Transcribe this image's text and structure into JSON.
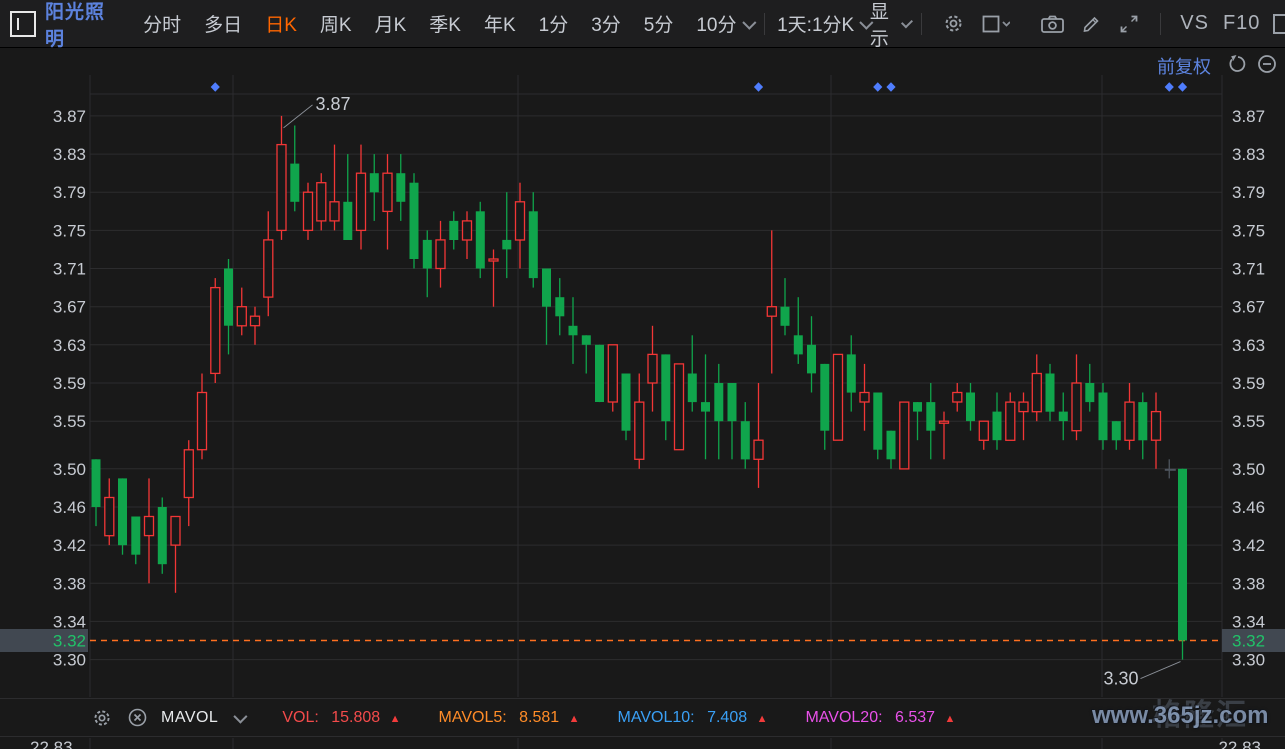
{
  "header": {
    "stock_name": "阳光照明",
    "tabs": [
      {
        "label": "分时",
        "active": false
      },
      {
        "label": "多日",
        "active": false
      },
      {
        "label": "日K",
        "active": true
      },
      {
        "label": "周K",
        "active": false
      },
      {
        "label": "月K",
        "active": false
      },
      {
        "label": "季K",
        "active": false
      },
      {
        "label": "年K",
        "active": false
      },
      {
        "label": "1分",
        "active": false
      },
      {
        "label": "3分",
        "active": false
      },
      {
        "label": "5分",
        "active": false
      },
      {
        "label": "10分",
        "active": false
      }
    ],
    "period_selector": "1天:1分K",
    "display_label": "显示",
    "vs_label": "VS",
    "f10_label": "F10"
  },
  "chart": {
    "adjust_label": "前复权",
    "current_price": "3.32"
  },
  "chart_data": {
    "type": "candlestick",
    "title": "阳光照明 日K 前复权",
    "ylim": [
      3.287,
      3.893
    ],
    "y_ticks": [
      3.87,
      3.83,
      3.79,
      3.75,
      3.71,
      3.67,
      3.63,
      3.59,
      3.55,
      3.5,
      3.46,
      3.42,
      3.38,
      3.34,
      3.3
    ],
    "current_price": 3.32,
    "annotations": {
      "high": {
        "label": "3.87",
        "index": 14
      },
      "low": {
        "label": "3.30",
        "index": 82
      }
    },
    "event_marker_indices": [
      9,
      50,
      59,
      60,
      81,
      82
    ],
    "gray_indices": [
      81
    ],
    "candles": [
      [
        3.51,
        3.51,
        3.44,
        3.46
      ],
      [
        3.43,
        3.49,
        3.42,
        3.47
      ],
      [
        3.49,
        3.49,
        3.41,
        3.42
      ],
      [
        3.45,
        3.45,
        3.4,
        3.41
      ],
      [
        3.43,
        3.49,
        3.38,
        3.45
      ],
      [
        3.46,
        3.47,
        3.39,
        3.4
      ],
      [
        3.42,
        3.45,
        3.37,
        3.45
      ],
      [
        3.47,
        3.53,
        3.44,
        3.52
      ],
      [
        3.52,
        3.6,
        3.51,
        3.58
      ],
      [
        3.6,
        3.7,
        3.59,
        3.69
      ],
      [
        3.71,
        3.72,
        3.62,
        3.65
      ],
      [
        3.65,
        3.69,
        3.64,
        3.67
      ],
      [
        3.65,
        3.67,
        3.63,
        3.66
      ],
      [
        3.68,
        3.77,
        3.66,
        3.74
      ],
      [
        3.75,
        3.87,
        3.74,
        3.84
      ],
      [
        3.82,
        3.86,
        3.77,
        3.78
      ],
      [
        3.75,
        3.8,
        3.74,
        3.79
      ],
      [
        3.76,
        3.81,
        3.75,
        3.8
      ],
      [
        3.76,
        3.84,
        3.75,
        3.78
      ],
      [
        3.78,
        3.83,
        3.74,
        3.74
      ],
      [
        3.75,
        3.84,
        3.73,
        3.81
      ],
      [
        3.81,
        3.83,
        3.76,
        3.79
      ],
      [
        3.77,
        3.83,
        3.73,
        3.81
      ],
      [
        3.81,
        3.83,
        3.76,
        3.78
      ],
      [
        3.8,
        3.81,
        3.71,
        3.72
      ],
      [
        3.74,
        3.75,
        3.68,
        3.71
      ],
      [
        3.71,
        3.76,
        3.69,
        3.74
      ],
      [
        3.76,
        3.77,
        3.73,
        3.74
      ],
      [
        3.74,
        3.77,
        3.72,
        3.76
      ],
      [
        3.77,
        3.78,
        3.7,
        3.71
      ],
      [
        3.72,
        3.73,
        3.67,
        3.72
      ],
      [
        3.74,
        3.79,
        3.7,
        3.73
      ],
      [
        3.74,
        3.8,
        3.71,
        3.78
      ],
      [
        3.77,
        3.79,
        3.69,
        3.7
      ],
      [
        3.71,
        3.71,
        3.63,
        3.67
      ],
      [
        3.68,
        3.7,
        3.64,
        3.66
      ],
      [
        3.65,
        3.68,
        3.61,
        3.64
      ],
      [
        3.64,
        3.64,
        3.6,
        3.63
      ],
      [
        3.63,
        3.63,
        3.57,
        3.57
      ],
      [
        3.57,
        3.63,
        3.56,
        3.63
      ],
      [
        3.6,
        3.6,
        3.53,
        3.54
      ],
      [
        3.51,
        3.6,
        3.5,
        3.57
      ],
      [
        3.59,
        3.65,
        3.56,
        3.62
      ],
      [
        3.62,
        3.62,
        3.53,
        3.55
      ],
      [
        3.52,
        3.61,
        3.52,
        3.61
      ],
      [
        3.6,
        3.64,
        3.56,
        3.57
      ],
      [
        3.57,
        3.62,
        3.51,
        3.56
      ],
      [
        3.59,
        3.61,
        3.51,
        3.55
      ],
      [
        3.59,
        3.59,
        3.51,
        3.55
      ],
      [
        3.55,
        3.57,
        3.5,
        3.51
      ],
      [
        3.51,
        3.59,
        3.48,
        3.53
      ],
      [
        3.66,
        3.75,
        3.6,
        3.67
      ],
      [
        3.67,
        3.7,
        3.64,
        3.65
      ],
      [
        3.64,
        3.68,
        3.61,
        3.62
      ],
      [
        3.63,
        3.66,
        3.58,
        3.6
      ],
      [
        3.61,
        3.61,
        3.52,
        3.54
      ],
      [
        3.53,
        3.62,
        3.53,
        3.62
      ],
      [
        3.62,
        3.64,
        3.56,
        3.58
      ],
      [
        3.57,
        3.61,
        3.54,
        3.58
      ],
      [
        3.58,
        3.58,
        3.51,
        3.52
      ],
      [
        3.54,
        3.54,
        3.5,
        3.51
      ],
      [
        3.5,
        3.57,
        3.5,
        3.57
      ],
      [
        3.57,
        3.57,
        3.53,
        3.56
      ],
      [
        3.57,
        3.59,
        3.51,
        3.54
      ],
      [
        3.55,
        3.56,
        3.51,
        3.55
      ],
      [
        3.57,
        3.59,
        3.56,
        3.58
      ],
      [
        3.58,
        3.59,
        3.54,
        3.55
      ],
      [
        3.53,
        3.55,
        3.52,
        3.55
      ],
      [
        3.56,
        3.58,
        3.52,
        3.53
      ],
      [
        3.53,
        3.58,
        3.53,
        3.57
      ],
      [
        3.56,
        3.58,
        3.53,
        3.57
      ],
      [
        3.56,
        3.62,
        3.55,
        3.6
      ],
      [
        3.6,
        3.61,
        3.55,
        3.56
      ],
      [
        3.56,
        3.58,
        3.53,
        3.55
      ],
      [
        3.54,
        3.62,
        3.53,
        3.59
      ],
      [
        3.59,
        3.61,
        3.56,
        3.57
      ],
      [
        3.58,
        3.59,
        3.52,
        3.53
      ],
      [
        3.55,
        3.55,
        3.52,
        3.53
      ],
      [
        3.53,
        3.59,
        3.52,
        3.57
      ],
      [
        3.57,
        3.58,
        3.51,
        3.53
      ],
      [
        3.53,
        3.58,
        3.5,
        3.56
      ],
      [
        3.5,
        3.51,
        3.49,
        3.5
      ],
      [
        3.5,
        3.5,
        3.3,
        3.32
      ]
    ]
  },
  "indicator_bar": {
    "name": "MAVOL",
    "vol_label": "VOL:",
    "vol_value": "15.808",
    "mavol5_label": "MAVOL5:",
    "mavol5_value": "8.581",
    "mavol10_label": "MAVOL10:",
    "mavol10_value": "7.408",
    "mavol20_label": "MAVOL20:",
    "mavol20_value": "6.537"
  },
  "volume_pane": {
    "axis_label": "22.83"
  },
  "watermark": {
    "url": "www.365jz.com",
    "logo": "格隆汇"
  },
  "colors": {
    "up": "#f23636",
    "down": "#10a54c",
    "gray_candle": "#4e555e",
    "dashed_line": "#ff7020",
    "diamond": "#4f7dfd",
    "grid": "#2c2c2e",
    "axis_text": "#c7cbd2",
    "current_text": "#21c269",
    "badge_bg": "#414851",
    "annotation_text": "#c7cbd2",
    "accent_orange": "#ff6600",
    "accent_blue": "#5c82dd"
  }
}
